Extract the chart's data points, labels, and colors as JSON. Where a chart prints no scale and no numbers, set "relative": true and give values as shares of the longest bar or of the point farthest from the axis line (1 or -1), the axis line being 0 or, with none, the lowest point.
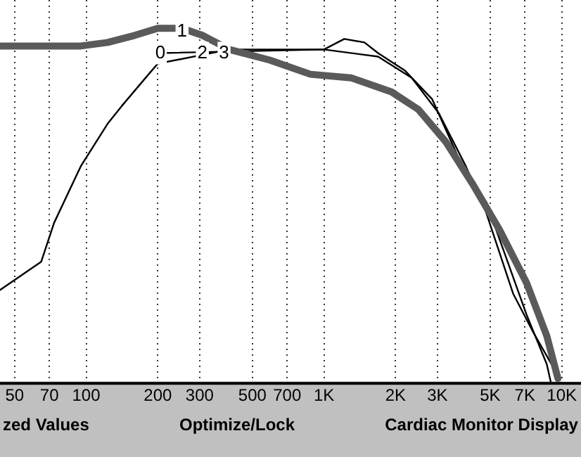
{
  "chart_data": {
    "type": "line",
    "relative": true,
    "log": "x",
    "grid": "x",
    "legend": false,
    "marker": "none",
    "line_style": "solid",
    "xlim": [
      43.4,
      10000
    ],
    "xticks": [
      50,
      70,
      100,
      200,
      300,
      500,
      700,
      {
        "value": 1000,
        "label": "1K"
      },
      {
        "value": 2000,
        "label": "2K"
      },
      {
        "value": 3000,
        "label": "3K"
      },
      {
        "value": 5000,
        "label": "5K"
      },
      {
        "value": 7000,
        "label": "7K"
      },
      {
        "value": 10000,
        "label": "10K"
      }
    ],
    "series": [
      {
        "color": "#5a5a5a",
        "x": [
          43.4,
          94.9,
          123,
          160,
          200,
          253,
          308,
          400,
          592,
          877,
          1299,
          1924,
          2499,
          3245,
          4216,
          5476,
          7112,
          8650,
          9636
        ],
        "values": [
          0.95,
          0.95,
          0.96,
          0.98,
          1,
          1,
          0.98,
          0.94,
          0.91,
          0.87,
          0.86,
          0.82,
          0.77,
          0.68,
          0.56,
          0.43,
          0.28,
          0.13,
          0.01
        ]
      },
      {
        "color": "#000000",
        "x": [
          43.4,
          64.7,
          73.3,
          94.9,
          123,
          141,
          183,
          200,
          400,
          1000,
          1217,
          1480,
          1688,
          2193,
          2848,
          3699,
          4216,
          4804,
          5846,
          7112,
          8650,
          8990
        ],
        "values": [
          0.26,
          0.34,
          0.45,
          0.61,
          0.73,
          0.78,
          0.87,
          0.9,
          0.94,
          0.94,
          0.97,
          0.96,
          0.93,
          0.88,
          0.8,
          0.63,
          0.56,
          0.51,
          0.35,
          0.19,
          0.05,
          0
        ]
      },
      {
        "color": "#000000",
        "x": [
          208,
          1000,
          1688,
          2340,
          3040,
          3950,
          4804,
          6241,
          7593,
          9235
        ],
        "values": [
          0.93,
          0.94,
          0.92,
          0.86,
          0.76,
          0.61,
          0.48,
          0.25,
          0.14,
          0.04
        ]
      }
    ],
    "annotations": [
      {
        "text": "0",
        "x": 205,
        "y": 0.93
      },
      {
        "text": "1",
        "x": 253,
        "y": 0.99
      },
      {
        "text": "2",
        "x": 308,
        "y": 0.93
      },
      {
        "text": "3",
        "x": 380,
        "y": 0.93
      },
      "zed Values",
      "Optimize/Lock",
      "Cardiac Monitor Display"
    ]
  }
}
